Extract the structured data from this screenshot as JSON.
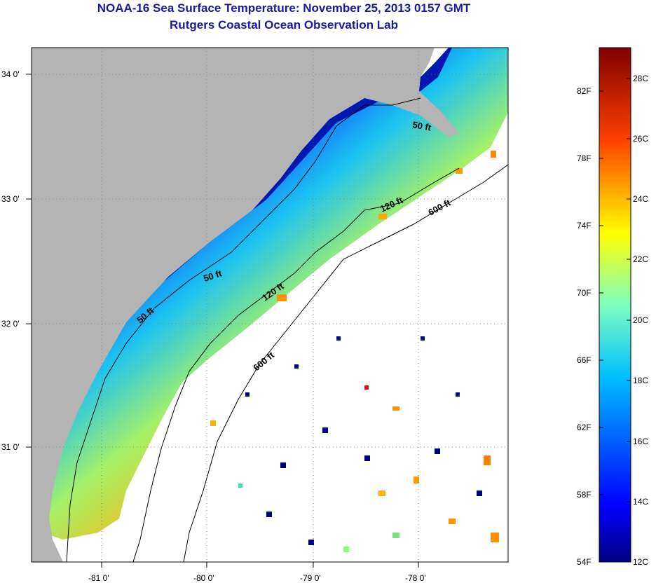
{
  "header": {
    "title": "NOAA-16 Sea Surface Temperature:  November 25, 2013 0157 GMT",
    "subtitle": "Rutgers Coastal Ocean Observation Lab"
  },
  "map": {
    "lat_labels": [
      "34 0'",
      "33 0'",
      "32 0'",
      "31 0'"
    ],
    "lon_labels": [
      "-81 0'",
      "-80 0'",
      "-79 0'",
      "-78 0'"
    ],
    "contour_labels": [
      "50 ft",
      "50 ft",
      "50 ft",
      "120 ft",
      "120 ft",
      "600 ft",
      "600 ft"
    ]
  },
  "colorbar": {
    "fahrenheit_labels": [
      "82F",
      "78F",
      "74F",
      "70F",
      "66F",
      "62F",
      "58F",
      "54F"
    ],
    "celsius_labels": [
      "28C",
      "26C",
      "24C",
      "22C",
      "20C",
      "18C",
      "16C",
      "14C",
      "12C"
    ],
    "colors": {
      "land": "#b4b4b4",
      "ocean_missing": "#ffffff",
      "cold": "#000080",
      "warm": "#800000"
    }
  }
}
